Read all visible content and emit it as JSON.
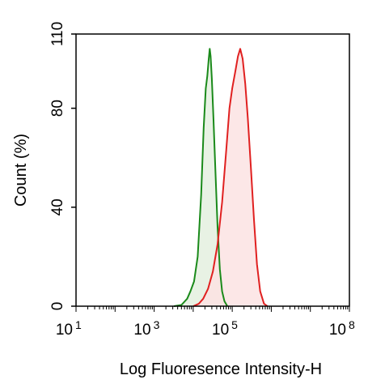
{
  "chart_data": {
    "type": "area",
    "title": "",
    "xlabel": "Log Fluoresence Intensity-H",
    "ylabel": "Count  (%)",
    "x_scale": "log",
    "xlim": [
      10,
      100000000
    ],
    "ylim": [
      0,
      110
    ],
    "x_ticks": [
      {
        "value": 10,
        "base": "10",
        "exp": "1"
      },
      {
        "value": 1000,
        "base": "10",
        "exp": "3"
      },
      {
        "value": 100000,
        "base": "10",
        "exp": "5"
      },
      {
        "value": 100000000,
        "base": "10",
        "exp": "8"
      }
    ],
    "y_ticks": [
      {
        "value": 0,
        "label": "0"
      },
      {
        "value": 40,
        "label": "40"
      },
      {
        "value": 80,
        "label": "80"
      },
      {
        "value": 110,
        "label": "110"
      }
    ],
    "grid": false,
    "legend": "none",
    "series": [
      {
        "color": "#1a8a1a",
        "fill": "#e4f0df",
        "points": [
          [
            3200,
            0
          ],
          [
            5000,
            0.5
          ],
          [
            7000,
            3
          ],
          [
            8500,
            6
          ],
          [
            10500,
            10
          ],
          [
            13000,
            20
          ],
          [
            16000,
            45
          ],
          [
            18500,
            72
          ],
          [
            21000,
            88
          ],
          [
            23000,
            93
          ],
          [
            25000,
            100
          ],
          [
            26500,
            104
          ],
          [
            28000,
            101
          ],
          [
            30000,
            92
          ],
          [
            33000,
            76
          ],
          [
            37000,
            55
          ],
          [
            42000,
            32
          ],
          [
            48000,
            15
          ],
          [
            55000,
            6
          ],
          [
            63000,
            2
          ],
          [
            75000,
            0
          ]
        ]
      },
      {
        "color": "#e02020",
        "fill": "#fbe3e3",
        "points": [
          [
            10000,
            0
          ],
          [
            14000,
            1
          ],
          [
            18000,
            3
          ],
          [
            24000,
            7
          ],
          [
            32000,
            14
          ],
          [
            42000,
            25
          ],
          [
            55000,
            42
          ],
          [
            70000,
            63
          ],
          [
            85000,
            80
          ],
          [
            100000,
            88
          ],
          [
            120000,
            95
          ],
          [
            140000,
            101
          ],
          [
            160000,
            104
          ],
          [
            185000,
            100
          ],
          [
            215000,
            90
          ],
          [
            250000,
            76
          ],
          [
            300000,
            56
          ],
          [
            360000,
            35
          ],
          [
            430000,
            17
          ],
          [
            520000,
            6
          ],
          [
            650000,
            1
          ],
          [
            800000,
            0
          ]
        ]
      }
    ]
  }
}
